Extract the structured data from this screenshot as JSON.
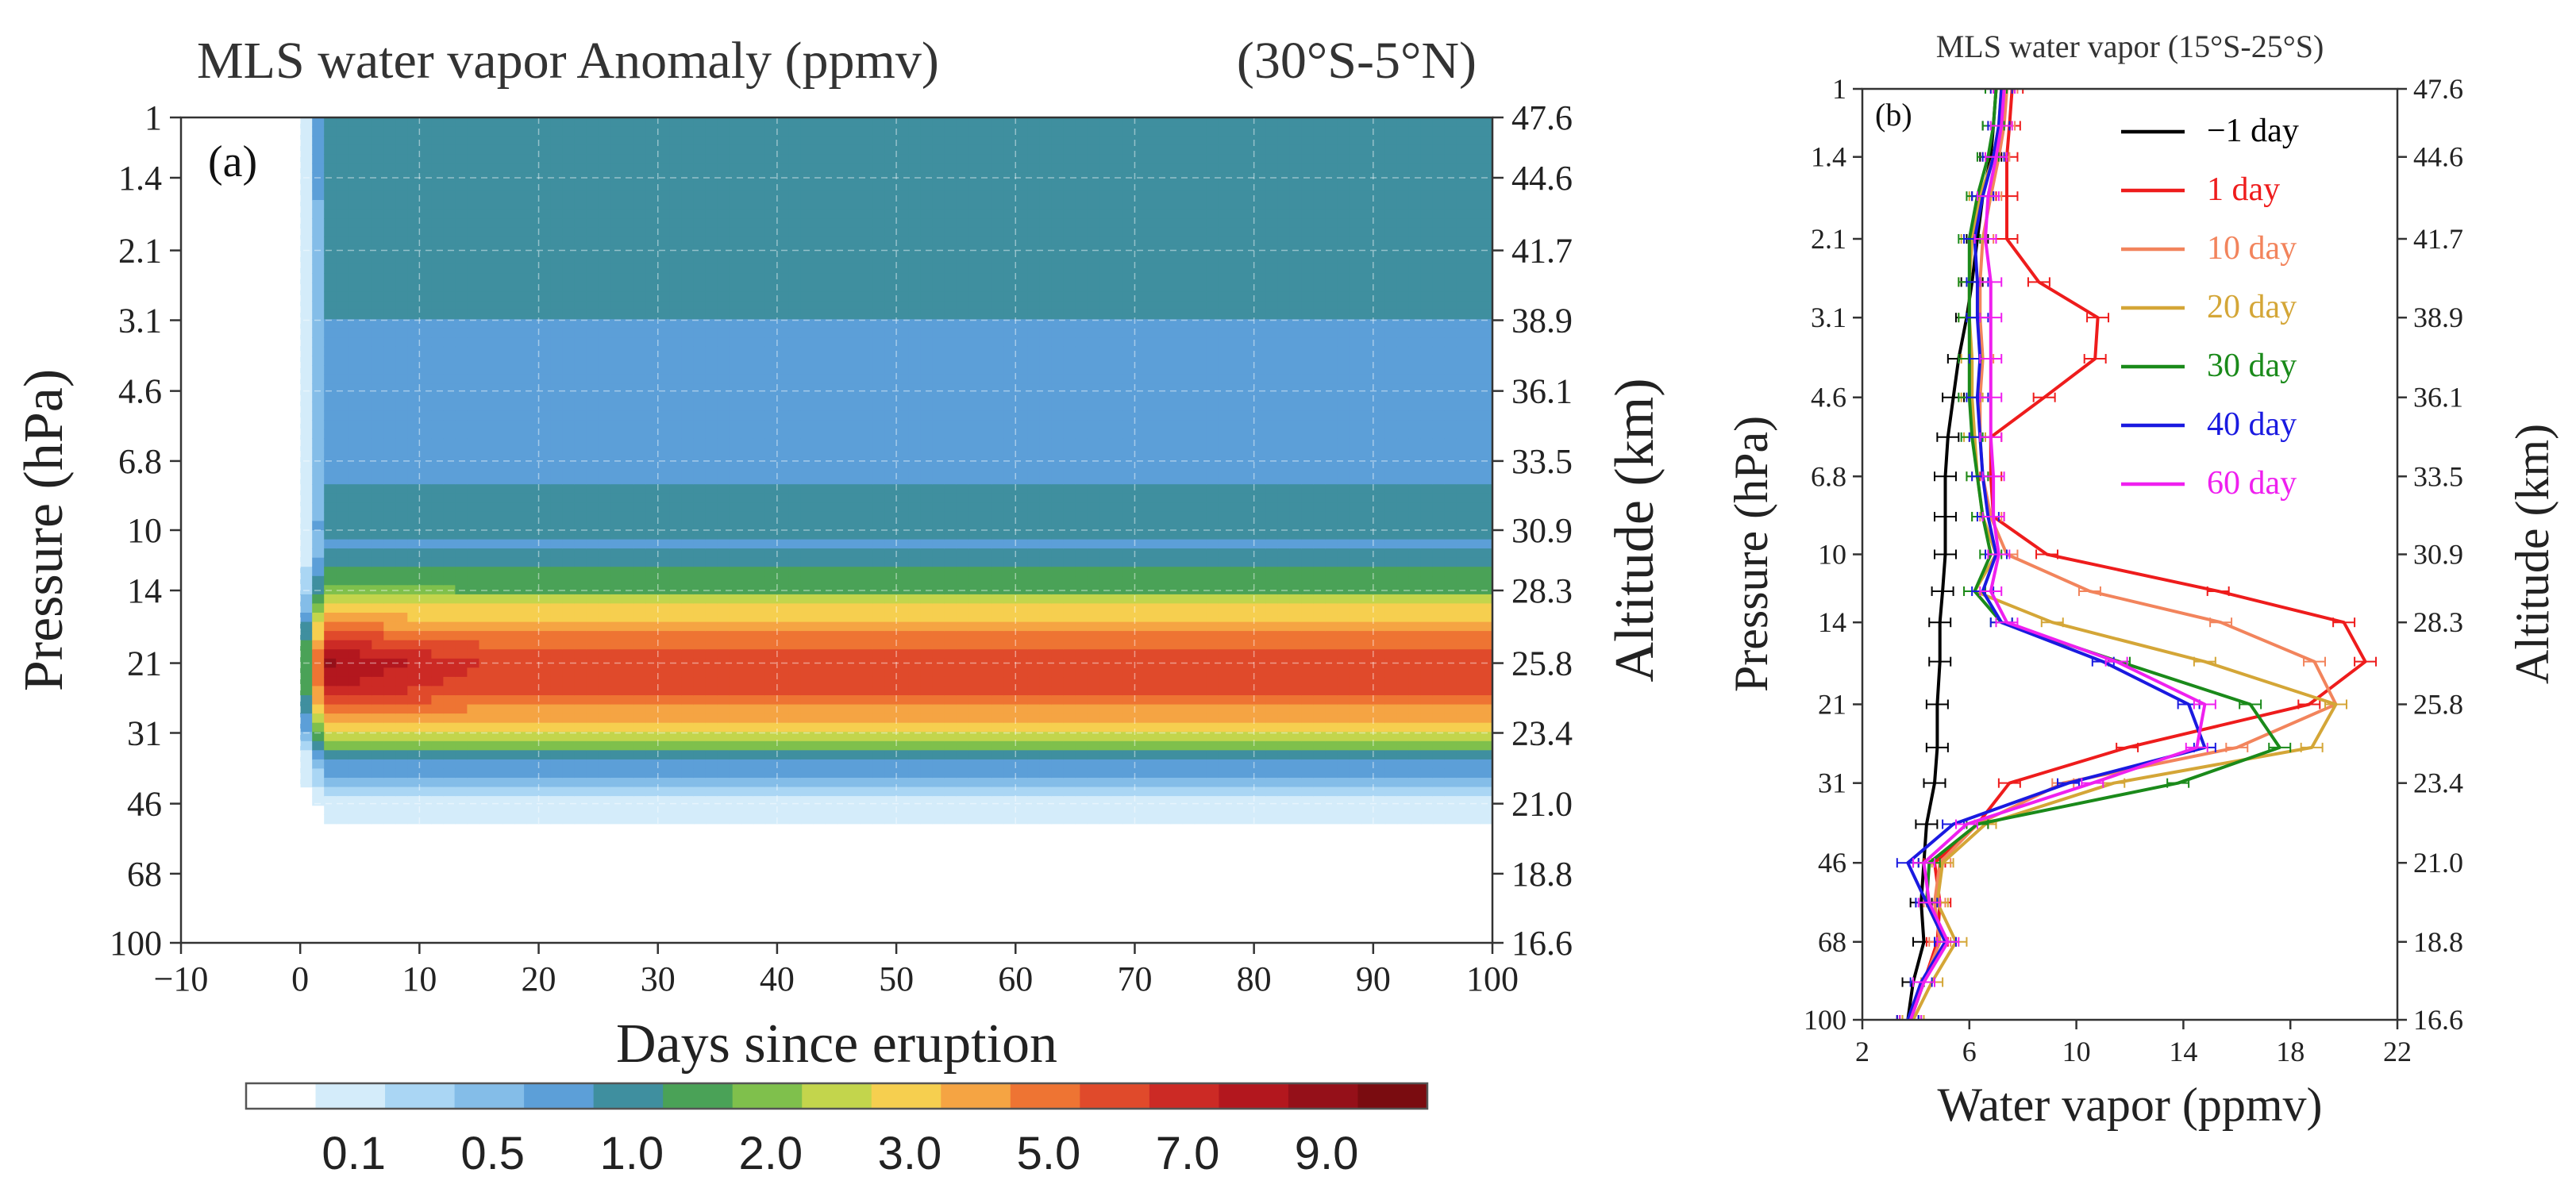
{
  "figure": {
    "panel_a_label": "(a)",
    "panel_b_label": "(b)",
    "colorbar": {
      "levels": [
        0,
        0.1,
        0.3,
        0.5,
        0.7,
        1.0,
        1.5,
        2.0,
        2.5,
        3.0,
        4.0,
        5.0,
        6.0,
        7.0,
        8.0,
        9.0,
        10.0
      ],
      "colors": [
        "#ffffff",
        "#d4ecfa",
        "#aad6f4",
        "#84bde8",
        "#5c9fd8",
        "#3f8f9f",
        "#4aa257",
        "#7fc04c",
        "#c3d54c",
        "#f6cf4f",
        "#f5a443",
        "#ee7433",
        "#e04a2b",
        "#cc2a25",
        "#b3171e",
        "#951019",
        "#7a0c10"
      ],
      "tick_labels": [
        "0.1",
        "0.5",
        "1.0",
        "2.0",
        "3.0",
        "5.0",
        "7.0",
        "9.0"
      ]
    }
  },
  "chart_data": [
    {
      "type": "heatmap",
      "title": "MLS water vapor Anomaly (ppmv)",
      "region_label": "(30°S-5°N)",
      "xlabel": "Days since eruption",
      "ylabel": "Pressure  (hPa)",
      "y2label": "Altitude  (km)",
      "x_ticks": [
        -10,
        0,
        10,
        20,
        30,
        40,
        50,
        60,
        70,
        80,
        90,
        100
      ],
      "xlim": [
        -10,
        100
      ],
      "ylim_hpa": [
        100,
        1
      ],
      "y_scale": "log",
      "y_tick_labels": [
        "1",
        "1.4",
        "2.1",
        "3.1",
        "4.6",
        "6.8",
        "10",
        "14",
        "21",
        "31",
        "46",
        "68",
        "100"
      ],
      "y_tick_values": [
        1,
        1.4,
        2.1,
        3.1,
        4.6,
        6.8,
        10,
        14,
        21,
        31,
        46,
        68,
        100
      ],
      "y2_tick_labels": [
        "47.6",
        "44.6",
        "41.7",
        "38.9",
        "36.1",
        "33.5",
        "30.9",
        "28.3",
        "25.8",
        "23.4",
        "21.0",
        "18.8",
        "16.6"
      ],
      "colorbar_unit": "ppmv",
      "anomaly_profile_pressure_hpa": [
        1,
        1.4,
        2.1,
        3.1,
        4.6,
        6.8,
        10,
        11,
        14,
        16,
        19,
        21,
        24,
        27,
        31,
        36,
        46,
        55,
        68,
        80,
        100
      ],
      "anomaly_profile_day100_ppmv": [
        1.3,
        1.2,
        1.1,
        1.0,
        0.95,
        0.9,
        1.2,
        0.9,
        2.0,
        3.5,
        6.0,
        7.0,
        6.5,
        5.0,
        3.0,
        1.0,
        0.2,
        0.0,
        0.1,
        0.05,
        0.0
      ]
    },
    {
      "type": "line",
      "title": "MLS water vapor (15°S-25°S)",
      "xlabel": "Water vapor  (ppmv)",
      "ylabel": "Pressure  (hPa)",
      "y2label": "Altitude  (km)",
      "xlim": [
        2,
        22
      ],
      "x_ticks": [
        2,
        6,
        10,
        14,
        18,
        22
      ],
      "y_scale": "log",
      "ylim_hpa": [
        100,
        1
      ],
      "y_tick_labels": [
        "1",
        "1.4",
        "2.1",
        "3.1",
        "4.6",
        "6.8",
        "10",
        "14",
        "21",
        "31",
        "46",
        "68",
        "100"
      ],
      "y_tick_values": [
        1,
        1.4,
        2.1,
        3.1,
        4.6,
        6.8,
        10,
        14,
        21,
        31,
        46,
        68,
        100
      ],
      "y2_tick_labels": [
        "47.6",
        "44.6",
        "41.7",
        "38.9",
        "36.1",
        "33.5",
        "30.9",
        "28.3",
        "25.8",
        "23.4",
        "21.0",
        "18.8",
        "16.6"
      ],
      "pressure_hpa": [
        1,
        1.2,
        1.4,
        1.7,
        2.1,
        2.6,
        3.1,
        3.8,
        4.6,
        5.6,
        6.8,
        8.3,
        10,
        12,
        14,
        17,
        21,
        26,
        31,
        38,
        46,
        56,
        68,
        83,
        100
      ],
      "series": [
        {
          "name": "−1 day",
          "color": "#000000",
          "values": [
            7.0,
            6.9,
            6.8,
            6.5,
            6.3,
            6.1,
            5.9,
            5.6,
            5.4,
            5.2,
            5.1,
            5.1,
            5.1,
            5.0,
            4.9,
            4.9,
            4.8,
            4.8,
            4.7,
            4.4,
            4.3,
            4.2,
            4.3,
            3.9,
            3.7
          ]
        },
        {
          "name": "1 day",
          "color": "#ee1c1c",
          "values": [
            7.6,
            7.5,
            7.4,
            7.4,
            7.4,
            8.6,
            10.8,
            10.7,
            8.8,
            6.8,
            6.8,
            6.9,
            8.9,
            15.3,
            20.0,
            20.8,
            18.7,
            11.9,
            7.5,
            6.3,
            4.7,
            4.9,
            4.8,
            4.3,
            3.7
          ]
        },
        {
          "name": "10 day",
          "color": "#f2845c",
          "values": [
            7.4,
            7.3,
            7.1,
            6.8,
            6.5,
            6.4,
            6.4,
            6.5,
            6.4,
            6.4,
            6.5,
            6.8,
            7.4,
            10.5,
            15.4,
            18.9,
            19.7,
            16.0,
            9.5,
            6.3,
            4.9,
            4.7,
            4.9,
            4.3,
            3.8
          ]
        },
        {
          "name": "20 day",
          "color": "#d4a637",
          "values": [
            7.2,
            7.1,
            6.9,
            6.4,
            6.1,
            6.0,
            6.0,
            6.1,
            6.1,
            6.2,
            6.3,
            6.5,
            7.0,
            6.2,
            9.1,
            14.8,
            19.7,
            18.8,
            11.4,
            6.6,
            5.0,
            4.8,
            5.5,
            4.6,
            3.9
          ]
        },
        {
          "name": "30 day",
          "color": "#1a8a1a",
          "values": [
            7.0,
            6.9,
            6.7,
            6.3,
            6.0,
            6.0,
            6.0,
            6.0,
            6.0,
            6.1,
            6.3,
            6.5,
            6.8,
            6.2,
            7.2,
            11.6,
            16.5,
            17.6,
            13.8,
            6.3,
            4.5,
            4.4,
            5.1,
            4.3,
            3.8
          ]
        },
        {
          "name": "40 day",
          "color": "#1a1ae0",
          "values": [
            7.2,
            7.1,
            6.9,
            6.5,
            6.2,
            6.3,
            6.3,
            6.4,
            6.3,
            6.4,
            6.5,
            6.7,
            7.0,
            6.5,
            7.2,
            11.0,
            14.2,
            14.8,
            9.7,
            5.4,
            3.7,
            4.4,
            5.1,
            4.2,
            3.7
          ]
        },
        {
          "name": "60 day",
          "color": "#ef20ef",
          "values": [
            7.3,
            7.2,
            7.0,
            6.7,
            6.6,
            6.8,
            6.8,
            6.8,
            6.8,
            6.8,
            6.9,
            6.9,
            7.1,
            6.8,
            7.4,
            11.5,
            14.8,
            14.5,
            10.6,
            5.9,
            4.3,
            4.5,
            5.2,
            4.3,
            3.8
          ]
        }
      ],
      "legend_position": "top-right"
    }
  ]
}
